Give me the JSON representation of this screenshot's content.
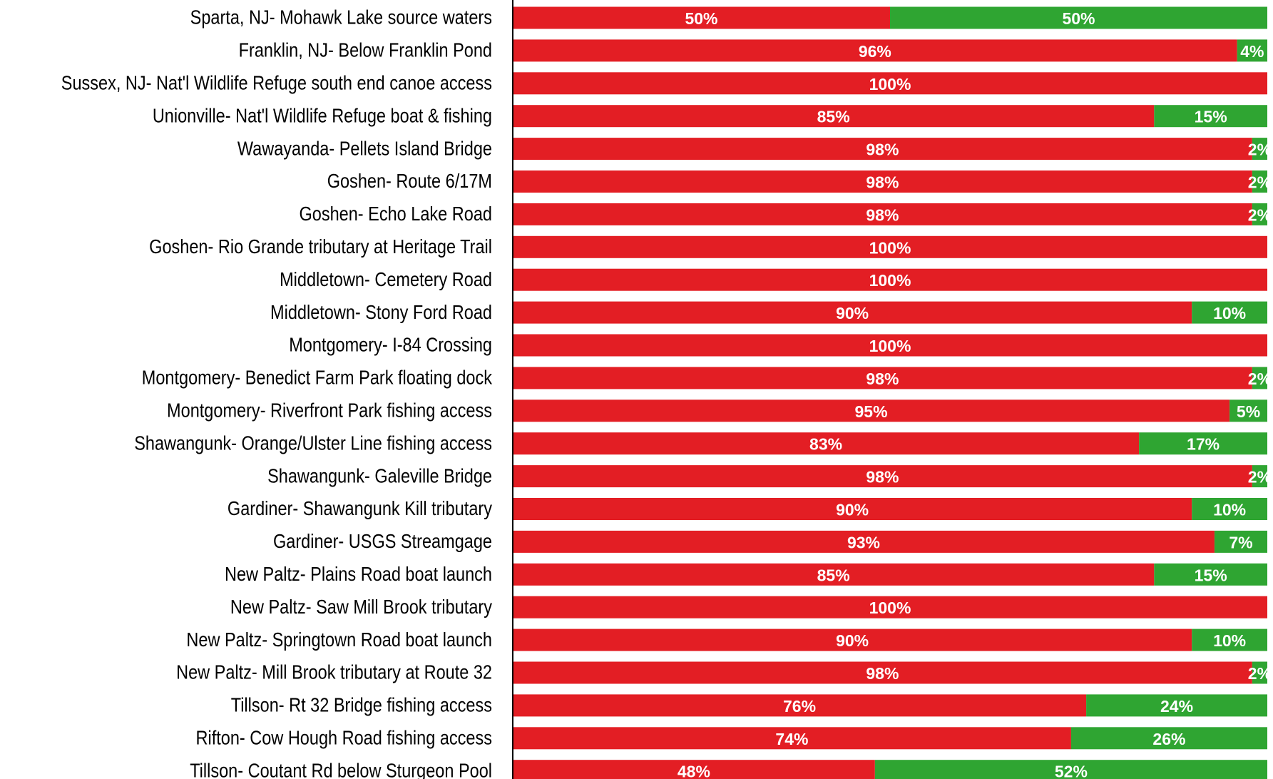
{
  "chart_data": {
    "type": "stacked-barh",
    "categories": [
      "Sparta, NJ- Mohawk Lake source waters",
      "Franklin, NJ- Below Franklin Pond",
      "Sussex, NJ- Nat'l Wildlife Refuge south end canoe access",
      "Unionville- Nat'l Wildlife Refuge boat & fishing",
      "Wawayanda- Pellets Island Bridge",
      "Goshen- Route 6/17M",
      "Goshen- Echo Lake Road",
      "Goshen- Rio Grande tributary at Heritage Trail",
      "Middletown- Cemetery Road",
      "Middletown- Stony Ford Road",
      "Montgomery- I-84 Crossing",
      "Montgomery- Benedict Farm Park floating dock",
      "Montgomery- Riverfront Park fishing access",
      "Shawangunk- Orange/Ulster Line fishing access",
      "Shawangunk- Galeville Bridge",
      "Gardiner- Shawangunk Kill tributary",
      "Gardiner- USGS Streamgage",
      "New Paltz- Plains Road boat launch",
      "New Paltz- Saw Mill Brook tributary",
      "New Paltz- Springtown Road boat launch",
      "New Paltz- Mill Brook tributary at Route 32",
      "Tillson- Rt 32 Bridge fishing access",
      "Rifton- Cow Hough Road fishing access",
      "Tillson- Coutant Rd below Sturgeon Pool"
    ],
    "series": [
      {
        "color": "#e31e24",
        "values": [
          50,
          96,
          100,
          85,
          98,
          98,
          98,
          100,
          100,
          90,
          100,
          98,
          95,
          83,
          98,
          90,
          93,
          85,
          100,
          90,
          98,
          76,
          74,
          48
        ],
        "value_labels": [
          "50%",
          "96%",
          "100%",
          "85%",
          "98%",
          "98%",
          "98%",
          "100%",
          "100%",
          "90%",
          "100%",
          "98%",
          "95%",
          "83%",
          "98%",
          "90%",
          "93%",
          "85%",
          "100%",
          "90%",
          "98%",
          "76%",
          "74%",
          "48%"
        ]
      },
      {
        "color": "#2fa532",
        "values": [
          50,
          4,
          null,
          15,
          2,
          2,
          2,
          null,
          null,
          10,
          null,
          2,
          5,
          17,
          2,
          10,
          7,
          15,
          null,
          10,
          2,
          24,
          26,
          52
        ],
        "value_labels": [
          "50%",
          "4%",
          null,
          "15%",
          "2%",
          "2%",
          "2%",
          null,
          null,
          "10%",
          null,
          "2%",
          "5%",
          "17%",
          "2%",
          "10%",
          "7%",
          "15%",
          null,
          "10%",
          "2%",
          "24%",
          "26%",
          "52%"
        ]
      }
    ],
    "xlim": [
      0,
      100
    ]
  }
}
